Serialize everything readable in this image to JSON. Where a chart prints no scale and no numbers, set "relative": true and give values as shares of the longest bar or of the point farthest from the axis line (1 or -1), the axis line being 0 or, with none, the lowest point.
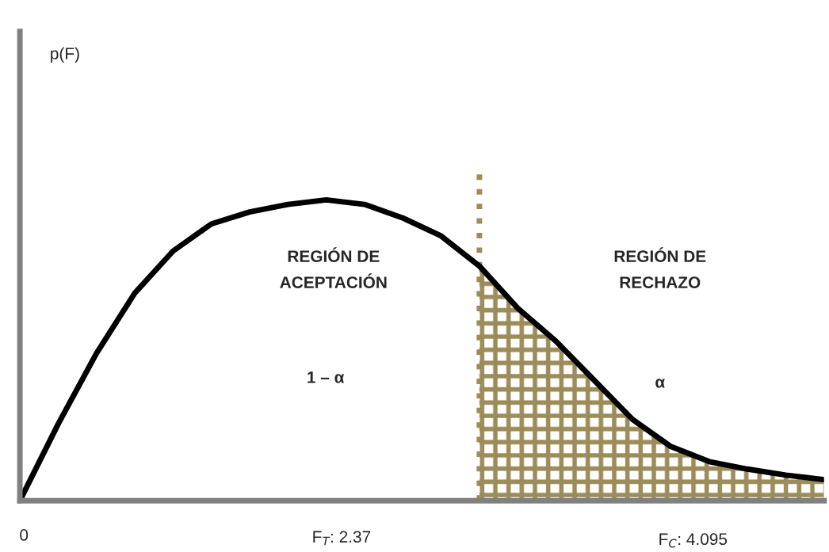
{
  "chart_data": {
    "type": "line",
    "relative": true,
    "categories": [
      null,
      null,
      null,
      null,
      null,
      null,
      null,
      null,
      null,
      null,
      null,
      null,
      null,
      null,
      null,
      null,
      null,
      null,
      null,
      null,
      null,
      null
    ],
    "series": [
      {
        "color": "#000000",
        "values": [
          0,
          0.255,
          0.49,
          0.69,
          0.83,
          0.92,
          0.96,
          0.985,
          1.0,
          0.985,
          0.94,
          0.88,
          0.78,
          0.64,
          0.53,
          0.4,
          0.27,
          0.18,
          0.13,
          0.105,
          0.085,
          0.07
        ]
      },
      {
        "type": "area",
        "color": "#9c8c5a",
        "values": [
          null,
          null,
          null,
          null,
          null,
          null,
          null,
          null,
          null,
          null,
          null,
          null,
          0.78,
          0.64,
          0.53,
          0.4,
          0.27,
          0.18,
          0.13,
          0.105,
          0.085,
          0.07
        ]
      }
    ],
    "annotations": [
      "REGIÓN DE\nACEPTACIÓN",
      "REGIÓN DE\nRECHAZO",
      "1 – α",
      "α",
      "0",
      "F$_{T}$: 2.37",
      "F$_{C}$: 4.095",
      "p(F)"
    ],
    "legend": false
  }
}
